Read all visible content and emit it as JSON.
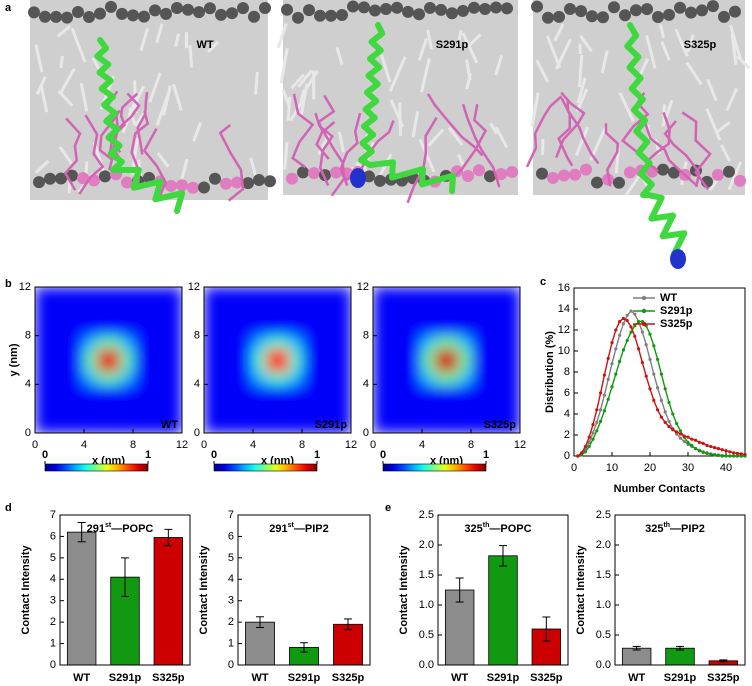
{
  "panel_labels": [
    "a",
    "b",
    "c",
    "d",
    "e"
  ],
  "snapshots": [
    {
      "label": "WT"
    },
    {
      "label": "S291p"
    },
    {
      "label": "S325p"
    }
  ],
  "chart_data": [
    {
      "type": "heatmap",
      "label": "WT",
      "xlabel": "x (nm)",
      "ylabel": "y (nm)",
      "xlim": [
        0,
        12
      ],
      "xticks": [
        0,
        4,
        8,
        12
      ],
      "ylim": [
        0,
        12
      ],
      "yticks": [
        0,
        4,
        8,
        12
      ],
      "colorbar_ticks": [
        0,
        1
      ],
      "z": [
        [
          0.12,
          0.12,
          0.12,
          0.12,
          0.12,
          0.12,
          0.12,
          0.12,
          0.12,
          0.12,
          0.12,
          0.12
        ],
        [
          0.12,
          0.12,
          0.12,
          0.12,
          0.12,
          0.12,
          0.12,
          0.12,
          0.12,
          0.12,
          0.12,
          0.12
        ],
        [
          0.12,
          0.12,
          0.12,
          0.12,
          0.12,
          0.12,
          0.12,
          0.12,
          0.12,
          0.12,
          0.12,
          0.12
        ],
        [
          0.12,
          0.12,
          0.12,
          0.12,
          0.12,
          0.12,
          0.12,
          0.12,
          0.12,
          0.12,
          0.12,
          0.12
        ],
        [
          0.12,
          0.12,
          0.12,
          0.12,
          0.3,
          0.45,
          0.45,
          0.3,
          0.12,
          0.12,
          0.12,
          0.12
        ],
        [
          0.12,
          0.12,
          0.12,
          0.12,
          0.45,
          0.9,
          0.9,
          0.45,
          0.12,
          0.12,
          0.12,
          0.12
        ],
        [
          0.12,
          0.12,
          0.12,
          0.12,
          0.45,
          0.9,
          0.9,
          0.45,
          0.12,
          0.12,
          0.12,
          0.12
        ],
        [
          0.12,
          0.12,
          0.12,
          0.12,
          0.3,
          0.45,
          0.45,
          0.3,
          0.12,
          0.12,
          0.12,
          0.12
        ],
        [
          0.12,
          0.12,
          0.12,
          0.12,
          0.12,
          0.12,
          0.12,
          0.12,
          0.12,
          0.12,
          0.12,
          0.12
        ],
        [
          0.12,
          0.12,
          0.12,
          0.12,
          0.12,
          0.12,
          0.12,
          0.12,
          0.12,
          0.12,
          0.12,
          0.12
        ],
        [
          0.12,
          0.12,
          0.12,
          0.12,
          0.12,
          0.12,
          0.12,
          0.12,
          0.12,
          0.12,
          0.12,
          0.12
        ],
        [
          0.12,
          0.12,
          0.12,
          0.12,
          0.12,
          0.12,
          0.12,
          0.12,
          0.12,
          0.12,
          0.12,
          0.12
        ]
      ]
    },
    {
      "type": "heatmap",
      "label": "S291p",
      "xlabel": "x (nm)",
      "xlim": [
        0,
        12
      ],
      "xticks": [
        0,
        4,
        8,
        12
      ],
      "ylim": [
        0,
        12
      ],
      "yticks": [
        0,
        4,
        8,
        12
      ],
      "colorbar_ticks": [
        0,
        1
      ],
      "z": [
        [
          0.12,
          0.12,
          0.12,
          0.12,
          0.12,
          0.12,
          0.12,
          0.12,
          0.12,
          0.12,
          0.12,
          0.12
        ],
        [
          0.12,
          0.12,
          0.12,
          0.12,
          0.12,
          0.12,
          0.12,
          0.12,
          0.12,
          0.12,
          0.12,
          0.12
        ],
        [
          0.12,
          0.12,
          0.12,
          0.12,
          0.12,
          0.12,
          0.12,
          0.12,
          0.12,
          0.12,
          0.12,
          0.12
        ],
        [
          0.12,
          0.12,
          0.12,
          0.12,
          0.12,
          0.12,
          0.12,
          0.12,
          0.12,
          0.12,
          0.12,
          0.12
        ],
        [
          0.12,
          0.12,
          0.12,
          0.12,
          0.3,
          0.42,
          0.42,
          0.3,
          0.12,
          0.12,
          0.12,
          0.12
        ],
        [
          0.12,
          0.12,
          0.12,
          0.12,
          0.42,
          0.85,
          0.85,
          0.42,
          0.12,
          0.12,
          0.12,
          0.12
        ],
        [
          0.12,
          0.12,
          0.12,
          0.12,
          0.42,
          0.85,
          0.85,
          0.42,
          0.12,
          0.12,
          0.12,
          0.12
        ],
        [
          0.12,
          0.12,
          0.12,
          0.12,
          0.3,
          0.42,
          0.42,
          0.3,
          0.12,
          0.12,
          0.12,
          0.12
        ],
        [
          0.12,
          0.12,
          0.12,
          0.12,
          0.12,
          0.12,
          0.12,
          0.12,
          0.12,
          0.12,
          0.12,
          0.12
        ],
        [
          0.12,
          0.12,
          0.12,
          0.12,
          0.12,
          0.12,
          0.12,
          0.12,
          0.12,
          0.12,
          0.12,
          0.12
        ],
        [
          0.12,
          0.12,
          0.12,
          0.12,
          0.12,
          0.12,
          0.12,
          0.12,
          0.12,
          0.12,
          0.12,
          0.12
        ],
        [
          0.12,
          0.12,
          0.12,
          0.12,
          0.12,
          0.12,
          0.12,
          0.12,
          0.12,
          0.12,
          0.12,
          0.12
        ]
      ]
    },
    {
      "type": "heatmap",
      "label": "S325p",
      "xlabel": "x (nm)",
      "xlim": [
        0,
        12
      ],
      "xticks": [
        0,
        4,
        8,
        12
      ],
      "ylim": [
        0,
        12
      ],
      "yticks": [
        0,
        4,
        8,
        12
      ],
      "colorbar_ticks": [
        0,
        1
      ],
      "z": [
        [
          0.12,
          0.12,
          0.12,
          0.12,
          0.12,
          0.12,
          0.12,
          0.12,
          0.12,
          0.12,
          0.12,
          0.12
        ],
        [
          0.12,
          0.12,
          0.12,
          0.12,
          0.12,
          0.12,
          0.12,
          0.12,
          0.12,
          0.12,
          0.12,
          0.12
        ],
        [
          0.12,
          0.12,
          0.12,
          0.12,
          0.12,
          0.12,
          0.12,
          0.12,
          0.12,
          0.12,
          0.12,
          0.12
        ],
        [
          0.12,
          0.12,
          0.12,
          0.12,
          0.12,
          0.12,
          0.12,
          0.12,
          0.12,
          0.12,
          0.12,
          0.12
        ],
        [
          0.12,
          0.12,
          0.12,
          0.12,
          0.32,
          0.47,
          0.47,
          0.32,
          0.12,
          0.12,
          0.12,
          0.12
        ],
        [
          0.12,
          0.12,
          0.12,
          0.12,
          0.47,
          0.92,
          0.92,
          0.47,
          0.12,
          0.12,
          0.12,
          0.12
        ],
        [
          0.12,
          0.12,
          0.12,
          0.12,
          0.47,
          0.92,
          0.92,
          0.47,
          0.12,
          0.12,
          0.12,
          0.12
        ],
        [
          0.12,
          0.12,
          0.12,
          0.12,
          0.32,
          0.47,
          0.47,
          0.32,
          0.12,
          0.12,
          0.12,
          0.12
        ],
        [
          0.12,
          0.12,
          0.12,
          0.12,
          0.12,
          0.12,
          0.12,
          0.12,
          0.12,
          0.12,
          0.12,
          0.12
        ],
        [
          0.12,
          0.12,
          0.12,
          0.12,
          0.12,
          0.12,
          0.12,
          0.12,
          0.12,
          0.12,
          0.12,
          0.12
        ],
        [
          0.12,
          0.12,
          0.12,
          0.12,
          0.12,
          0.12,
          0.12,
          0.12,
          0.12,
          0.12,
          0.12,
          0.12
        ],
        [
          0.12,
          0.12,
          0.12,
          0.12,
          0.12,
          0.12,
          0.12,
          0.12,
          0.12,
          0.12,
          0.12,
          0.12
        ]
      ]
    },
    {
      "type": "line",
      "xlabel": "Number Contacts",
      "ylabel": "Distribution (%)",
      "xlim": [
        0,
        45
      ],
      "xticks": [
        0,
        10,
        20,
        30,
        40
      ],
      "ylim": [
        0,
        16
      ],
      "yticks": [
        0,
        2,
        4,
        6,
        8,
        10,
        12,
        14,
        16
      ],
      "legend": "upper right",
      "x": [
        1,
        2,
        3,
        4,
        5,
        6,
        7,
        8,
        9,
        10,
        11,
        12,
        13,
        14,
        15,
        16,
        17,
        18,
        19,
        20,
        21,
        22,
        23,
        24,
        25,
        26,
        27,
        28,
        29,
        30,
        31,
        32,
        33,
        34,
        35,
        36,
        37,
        38,
        39,
        40,
        41,
        42,
        43,
        44,
        45
      ],
      "series": [
        {
          "name": "WT",
          "color": "#808080",
          "values": [
            0,
            0.2,
            0.6,
            1.3,
            2.2,
            3.2,
            4.4,
            5.8,
            7.3,
            8.8,
            10.2,
            11.5,
            12.6,
            13.4,
            13.8,
            13.5,
            12.8,
            11.8,
            10.6,
            9.2,
            7.8,
            6.5,
            5.3,
            4.2,
            3.3,
            2.6,
            2.1,
            1.7,
            1.4,
            1.1,
            0.9,
            0.7,
            0.55,
            0.4,
            0.3,
            0.2,
            0.15,
            0.1,
            0.05,
            0.03,
            0,
            0,
            0,
            0,
            0
          ]
        },
        {
          "name": "S291p",
          "color": "#119911",
          "values": [
            0,
            0.1,
            0.4,
            0.9,
            1.6,
            2.4,
            3.3,
            4.3,
            5.4,
            6.6,
            7.8,
            9.0,
            10.1,
            11.0,
            11.8,
            12.4,
            12.8,
            12.8,
            12.4,
            11.6,
            10.5,
            9.2,
            7.8,
            6.4,
            5.1,
            4.0,
            3.1,
            2.4,
            1.8,
            1.3,
            1.0,
            0.7,
            0.5,
            0.35,
            0.25,
            0.15,
            0.1,
            0.05,
            0,
            0,
            0,
            0,
            0,
            0,
            0
          ]
        },
        {
          "name": "S325p",
          "color": "#cc1111",
          "values": [
            0,
            0.3,
            0.9,
            1.8,
            3.0,
            4.4,
            6.0,
            7.7,
            9.3,
            10.8,
            12.0,
            12.8,
            13.1,
            12.9,
            12.3,
            11.4,
            10.2,
            8.9,
            7.6,
            6.4,
            5.3,
            4.4,
            3.7,
            3.2,
            2.8,
            2.5,
            2.3,
            2.1,
            1.9,
            1.8,
            1.6,
            1.5,
            1.3,
            1.2,
            1.0,
            0.9,
            0.8,
            0.7,
            0.6,
            0.5,
            0.4,
            0.3,
            0.25,
            0.2,
            0.15
          ]
        }
      ]
    },
    {
      "type": "bar",
      "title": [
        "291",
        "st",
        "—POPC"
      ],
      "ylabel": "Contact Intensity",
      "categories": [
        "WT",
        "S291p",
        "S325p"
      ],
      "values": [
        6.2,
        4.1,
        5.95
      ],
      "errors": [
        0.45,
        0.9,
        0.38
      ],
      "colors": [
        "#8c8c8c",
        "#119911",
        "#cc0000"
      ],
      "ylim": [
        0,
        7
      ],
      "yticks": [
        0,
        1,
        2,
        3,
        4,
        5,
        6,
        7
      ]
    },
    {
      "type": "bar",
      "title": [
        "291",
        "st",
        "—PIP2"
      ],
      "ylabel": "Contact Intensity",
      "categories": [
        "WT",
        "S291p",
        "S325p"
      ],
      "values": [
        2.0,
        0.82,
        1.9
      ],
      "errors": [
        0.25,
        0.22,
        0.25
      ],
      "colors": [
        "#8c8c8c",
        "#119911",
        "#cc0000"
      ],
      "ylim": [
        0,
        7
      ],
      "yticks": [
        0,
        1,
        2,
        3,
        4,
        5,
        6,
        7
      ]
    },
    {
      "type": "bar",
      "title": [
        "325",
        "th",
        "—POPC"
      ],
      "ylabel": "Contact Intensity",
      "categories": [
        "WT",
        "S291p",
        "S325p"
      ],
      "values": [
        1.25,
        1.82,
        0.6
      ],
      "errors": [
        0.2,
        0.17,
        0.2
      ],
      "colors": [
        "#8c8c8c",
        "#119911",
        "#cc0000"
      ],
      "ylim": [
        0,
        2.5
      ],
      "yticks": [
        {
          "value": 0,
          "label": "0.0"
        },
        0.5,
        {
          "value": 1,
          "label": "1.0"
        },
        1.5,
        {
          "value": 2,
          "label": "2.0"
        },
        2.5
      ]
    },
    {
      "type": "bar",
      "title": [
        "325",
        "th",
        "—PIP2"
      ],
      "ylabel": "Contact Intensity",
      "categories": [
        "WT",
        "S291p",
        "S325p"
      ],
      "values": [
        0.28,
        0.28,
        0.07
      ],
      "errors": [
        0.03,
        0.03,
        0.015
      ],
      "colors": [
        "#8c8c8c",
        "#119911",
        "#cc0000"
      ],
      "ylim": [
        0,
        2.5
      ],
      "yticks": [
        {
          "value": 0,
          "label": "0.0"
        },
        0.5,
        {
          "value": 1,
          "label": "1.0"
        },
        1.5,
        {
          "value": 2,
          "label": "2.0"
        },
        2.5
      ]
    }
  ]
}
